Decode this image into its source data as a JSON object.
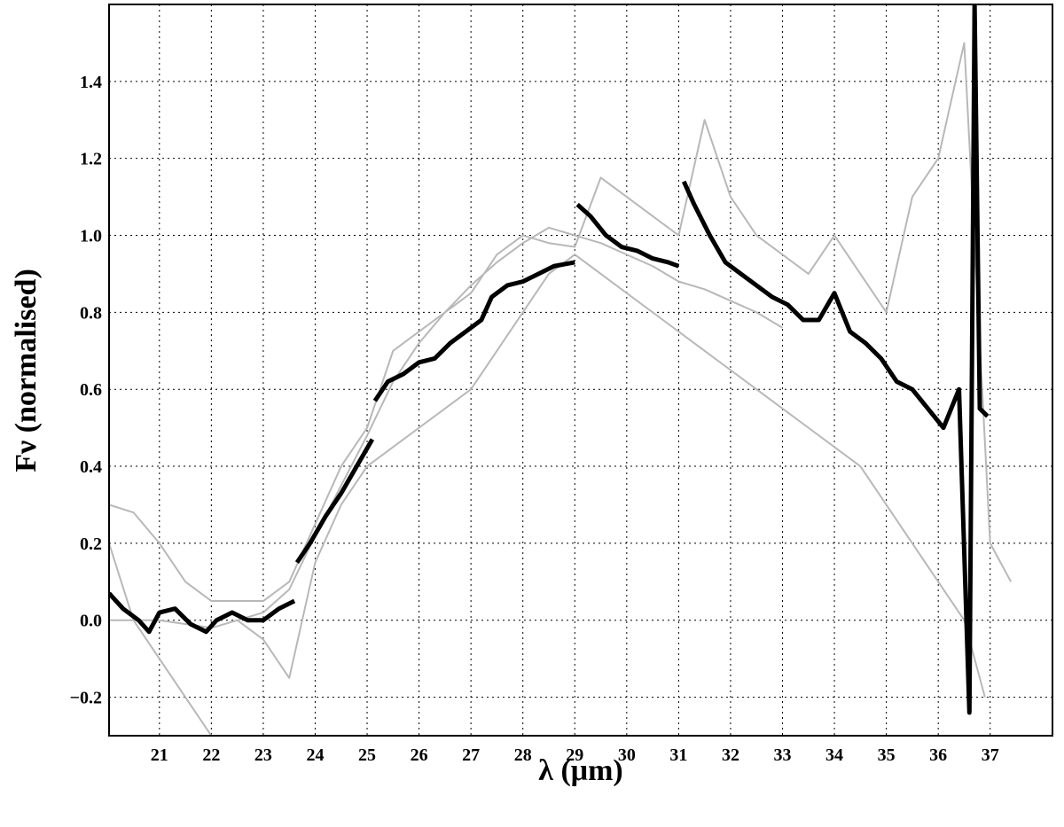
{
  "chart_data": {
    "type": "line",
    "xlabel": "λ (μm)",
    "ylabel": "Fν (normalised)",
    "xlim": [
      20.03,
      38.2
    ],
    "ylim": [
      -0.3,
      1.6
    ],
    "xticks": [
      21,
      22,
      23,
      24,
      25,
      26,
      27,
      28,
      29,
      30,
      31,
      32,
      33,
      34,
      35,
      36,
      37
    ],
    "yticks": [
      {
        "value": -0.2,
        "label": "−0.2"
      },
      {
        "value": 0,
        "label": "0.0"
      },
      0.2,
      0.4,
      0.6,
      0.8,
      {
        "value": 1,
        "label": "1.0"
      },
      1.2,
      1.4
    ],
    "grid": true,
    "series": [
      {
        "color": "#b8b8b8",
        "width": 2,
        "x": [
          20.03,
          20.5,
          21,
          21.5,
          22,
          22.5,
          23,
          23.5,
          24,
          24.5,
          25,
          25.5,
          26,
          26.5,
          27,
          27.5,
          28,
          28.5,
          29,
          29.5,
          30,
          30.5,
          31,
          31.5,
          32,
          32.5,
          33,
          33.5,
          34,
          34.5,
          35,
          35.5,
          36,
          36.5,
          37,
          37.4
        ],
        "values": [
          0.3,
          0.28,
          0.2,
          0.1,
          0.05,
          0.05,
          0.05,
          0.1,
          0.25,
          0.4,
          0.5,
          0.7,
          0.75,
          0.8,
          0.85,
          0.95,
          1.0,
          0.98,
          0.97,
          1.15,
          1.1,
          1.05,
          1.0,
          1.3,
          1.1,
          1.0,
          0.95,
          0.9,
          1.0,
          0.9,
          0.8,
          1.1,
          1.2,
          1.5,
          0.2,
          0.1
        ]
      },
      {
        "color": "#b8b8b8",
        "width": 2,
        "x": [
          20.03,
          20.5,
          21,
          21.5,
          22,
          22.2,
          22.5,
          23,
          23.5,
          24,
          24.5,
          25,
          25.5,
          26,
          26.5,
          27,
          27.5,
          28,
          28.5,
          29,
          29.5,
          30,
          30.5,
          31,
          31.5,
          32,
          32.5,
          33,
          33.5,
          34,
          34.5,
          35,
          35.5,
          36,
          36.5,
          36.9
        ],
        "values": [
          0.2,
          0.0,
          -0.1,
          -0.2,
          -0.3,
          null,
          0.0,
          -0.05,
          -0.15,
          0.15,
          0.3,
          0.4,
          0.45,
          0.5,
          0.55,
          0.6,
          0.7,
          0.8,
          0.9,
          0.95,
          0.9,
          0.85,
          0.8,
          0.75,
          0.7,
          0.65,
          0.6,
          0.55,
          0.5,
          0.45,
          0.4,
          0.3,
          0.2,
          0.1,
          0.0,
          -0.2
        ]
      },
      {
        "color": "#b8b8b8",
        "width": 2,
        "x": [
          20.03,
          21,
          22,
          23,
          23.5,
          24,
          24.5,
          25,
          25.5,
          26,
          26.5,
          27,
          27.5,
          28,
          28.5,
          29,
          29.5,
          30,
          30.5,
          31,
          31.5,
          32,
          32.5,
          33
        ],
        "values": [
          0.0,
          0.0,
          -0.02,
          0.02,
          0.08,
          0.22,
          0.35,
          0.48,
          0.62,
          0.72,
          0.8,
          0.87,
          0.93,
          0.98,
          1.02,
          1.0,
          0.98,
          0.95,
          0.92,
          0.88,
          0.86,
          0.83,
          0.8,
          0.76
        ]
      },
      {
        "color": "#000000",
        "width": 5,
        "x": [
          20.03,
          20.3,
          20.6,
          20.8,
          21.0,
          21.3,
          21.6,
          21.9,
          22.1,
          22.4,
          22.7,
          23.0,
          23.3,
          23.6,
          23.62,
          23.65,
          23.9,
          24.2,
          24.5,
          24.8,
          25.1,
          25.12,
          25.15,
          25.4,
          25.7,
          26.0,
          26.3,
          26.6,
          26.9,
          27.2,
          27.4,
          27.7,
          28.0,
          28.3,
          28.6,
          29.0,
          29.02,
          29.05,
          29.3,
          29.6,
          29.9,
          30.2,
          30.5,
          30.8,
          31.0,
          31.05,
          31.1,
          31.3,
          31.6,
          31.9,
          32.2,
          32.5,
          32.8,
          33.1,
          33.4,
          33.7,
          34.0,
          34.3,
          34.6,
          34.9,
          35.2,
          35.5,
          35.8,
          36.1,
          36.4,
          36.6,
          36.7,
          36.8,
          36.95
        ],
        "values": [
          0.07,
          0.03,
          0.0,
          -0.03,
          0.02,
          0.03,
          -0.01,
          -0.03,
          0.0,
          0.02,
          0.0,
          0.0,
          0.03,
          0.05,
          null,
          0.15,
          0.2,
          0.27,
          0.33,
          0.4,
          0.47,
          null,
          0.57,
          0.62,
          0.64,
          0.67,
          0.68,
          0.72,
          0.75,
          0.78,
          0.84,
          0.87,
          0.88,
          0.9,
          0.92,
          0.93,
          null,
          1.08,
          1.05,
          1.0,
          0.97,
          0.96,
          0.94,
          0.93,
          0.92,
          null,
          1.14,
          1.08,
          1.0,
          0.93,
          0.9,
          0.87,
          0.84,
          0.82,
          0.78,
          0.78,
          0.85,
          0.75,
          0.72,
          0.68,
          0.62,
          0.6,
          0.55,
          0.5,
          0.6,
          -0.24,
          1.6,
          0.55,
          0.53
        ]
      }
    ]
  }
}
